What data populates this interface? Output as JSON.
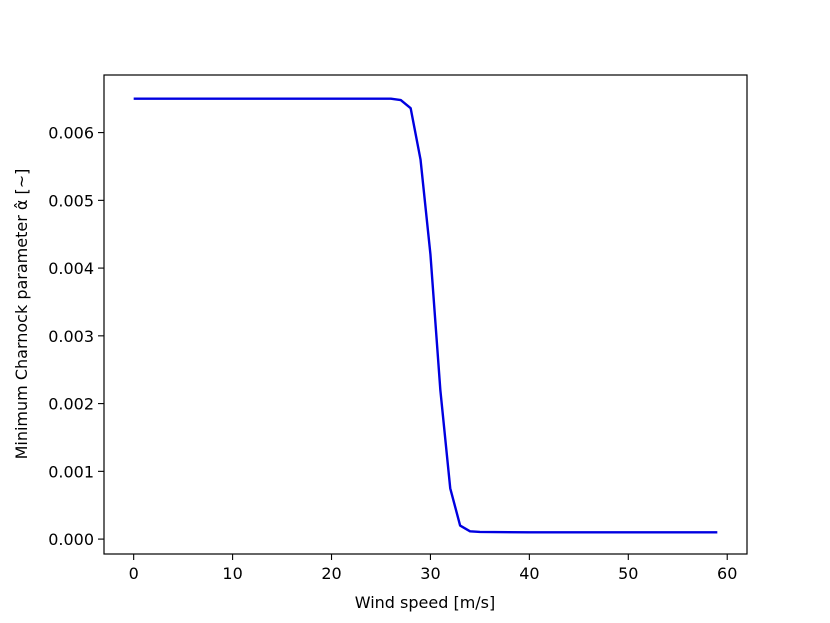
{
  "chart_data": {
    "type": "line",
    "title": "",
    "xlabel": "Wind speed [m/s]",
    "ylabel": "Minimum Charnock parameter α̂ [~]",
    "xlim": [
      -3,
      62
    ],
    "ylim": [
      -0.00022,
      0.00685
    ],
    "grid": false,
    "x_ticks": [
      0,
      10,
      20,
      30,
      40,
      50,
      60
    ],
    "x_tick_labels": [
      "0",
      "10",
      "20",
      "30",
      "40",
      "50",
      "60"
    ],
    "y_ticks": [
      0.0,
      0.001,
      0.002,
      0.003,
      0.004,
      0.005,
      0.006
    ],
    "y_tick_labels": [
      "0.000",
      "0.001",
      "0.002",
      "0.003",
      "0.004",
      "0.005",
      "0.006"
    ],
    "series": [
      {
        "color": "#0000e0",
        "x": [
          0,
          5,
          10,
          15,
          20,
          25,
          26,
          27,
          28,
          29,
          30,
          31,
          32,
          33,
          34,
          35,
          40,
          45,
          50,
          55,
          59
        ],
        "y": [
          0.0065,
          0.0065,
          0.0065,
          0.0065,
          0.0065,
          0.0065,
          0.0065,
          0.00648,
          0.00636,
          0.0056,
          0.0042,
          0.0022,
          0.00075,
          0.0002,
          0.000115,
          0.000105,
          0.0001,
          0.0001,
          0.0001,
          0.0001,
          0.0001
        ]
      }
    ]
  }
}
